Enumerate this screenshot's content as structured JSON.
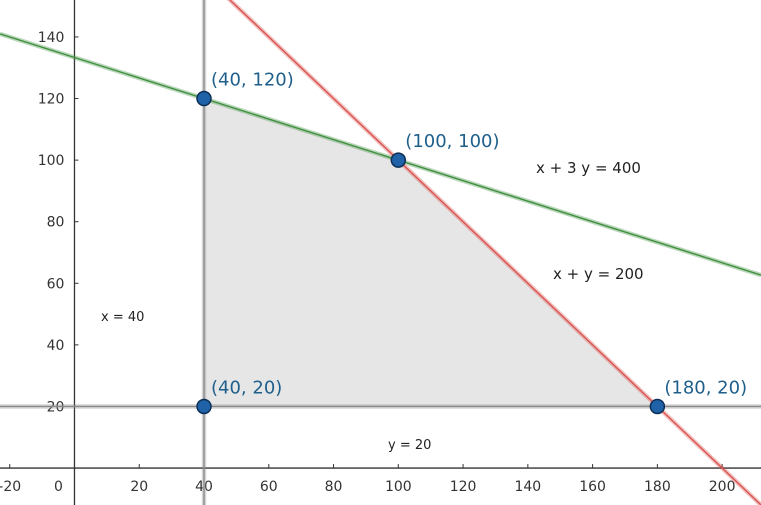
{
  "chart_data": {
    "type": "line",
    "title": "",
    "xlabel": "",
    "ylabel": "",
    "xlim": [
      -23,
      212
    ],
    "ylim": [
      -12,
      152
    ],
    "grid": false,
    "x_ticks": [
      -20,
      0,
      20,
      40,
      60,
      80,
      100,
      120,
      140,
      160,
      180,
      200
    ],
    "y_ticks": [
      20,
      40,
      60,
      80,
      100,
      120,
      140
    ],
    "feasible_region": [
      [
        40,
        20
      ],
      [
        40,
        120
      ],
      [
        100,
        100
      ],
      [
        180,
        20
      ]
    ],
    "lines": [
      {
        "label": "x + 3 y  =  400",
        "kind": "slope",
        "a": 1,
        "b": 3,
        "c": 400,
        "color": "#3f8f3f"
      },
      {
        "label": "x + y  =  200",
        "kind": "slope",
        "a": 1,
        "b": 1,
        "c": 200,
        "color": "#d9534f"
      },
      {
        "label": "x  =  40",
        "kind": "vertical",
        "value": 40,
        "color": "#8a8a8a"
      },
      {
        "label": "y  =  20",
        "kind": "horizontal",
        "value": 20,
        "color": "#8a8a8a"
      }
    ],
    "points": [
      {
        "x": 40,
        "y": 120,
        "label": "(40, 120)"
      },
      {
        "x": 100,
        "y": 100,
        "label": "(100, 100)"
      },
      {
        "x": 40,
        "y": 20,
        "label": "(40, 20)"
      },
      {
        "x": 180,
        "y": 20,
        "label": "(180, 20)"
      }
    ],
    "colors": {
      "region": "#e6e6e6",
      "point_fill": "#1f62a8",
      "point_label": "#1f5f8b"
    }
  }
}
